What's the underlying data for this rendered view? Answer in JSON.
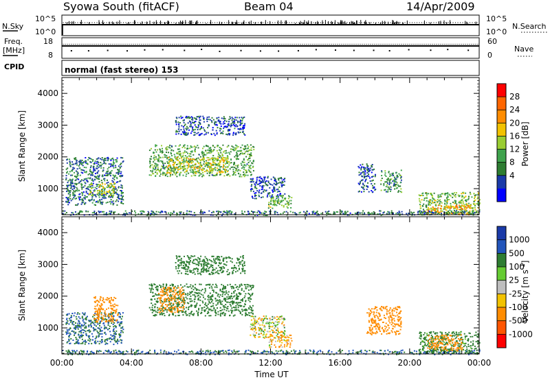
{
  "header": {
    "station": "Syowa South (fitACF)",
    "beam": "Beam 04",
    "date": "14/Apr/2009"
  },
  "panels": {
    "nsky": {
      "left_label": "N.Sky",
      "right_label": "N.Search",
      "left_ticks": [
        "10^5",
        "10^0"
      ],
      "right_ticks": [
        "10^5",
        "10^0"
      ]
    },
    "freq": {
      "left_label_1": "Freq.",
      "left_label_2": "[MHz]",
      "right_label": "Nave",
      "left_ticks": [
        "18",
        "8"
      ],
      "right_ticks": [
        "60",
        "0"
      ]
    },
    "cpid": {
      "left_label": "CPID",
      "text": "normal (fast stereo) 153"
    }
  },
  "colors": {
    "power_scale": [
      "#0000ff",
      "#1a3aa8",
      "#2e7d32",
      "#3fa34d",
      "#9acd32",
      "#f2c200",
      "#ff8c00",
      "#ff6600",
      "#ff0000"
    ],
    "velocity_scale": [
      "#1a3aa8",
      "#2255bb",
      "#2e7d32",
      "#66cc33",
      "#bebebe",
      "#f2c200",
      "#ff8c00",
      "#ff5500",
      "#ff0000"
    ]
  },
  "chart_data": [
    {
      "type": "heatmap",
      "title": "",
      "xlabel": "",
      "ylabel": "Slant Range [km]",
      "xlim": [
        0,
        24
      ],
      "ylim": [
        180,
        4500
      ],
      "y_ticks": [
        "1000",
        "2000",
        "3000",
        "4000"
      ],
      "colorbar": {
        "label": "Power [dB]",
        "range": [
          0,
          32
        ],
        "ticks": [
          "4",
          "8",
          "12",
          "16",
          "20",
          "24",
          "28"
        ]
      },
      "echo_regions": [
        {
          "t0": 0.2,
          "t1": 3.5,
          "r0": 500,
          "r1": 2000,
          "value": 8
        },
        {
          "t0": 1.5,
          "t1": 3.0,
          "r0": 800,
          "r1": 1200,
          "value": 16
        },
        {
          "t0": 5.0,
          "t1": 11.0,
          "r0": 1400,
          "r1": 2400,
          "value": 12
        },
        {
          "t0": 6.0,
          "t1": 9.5,
          "r0": 1500,
          "r1": 2000,
          "value": 18
        },
        {
          "t0": 6.5,
          "t1": 10.5,
          "r0": 2700,
          "r1": 3300,
          "value": 6
        },
        {
          "t0": 10.8,
          "t1": 12.8,
          "r0": 700,
          "r1": 1400,
          "value": 6
        },
        {
          "t0": 11.8,
          "t1": 13.2,
          "r0": 400,
          "r1": 800,
          "value": 14
        },
        {
          "t0": 17.0,
          "t1": 18.0,
          "r0": 900,
          "r1": 1800,
          "value": 6
        },
        {
          "t0": 18.3,
          "t1": 19.5,
          "r0": 900,
          "r1": 1600,
          "value": 10
        },
        {
          "t0": 20.5,
          "t1": 24.0,
          "r0": 200,
          "r1": 900,
          "value": 14
        },
        {
          "t0": 21.0,
          "t1": 23.5,
          "r0": 200,
          "r1": 500,
          "value": 22
        },
        {
          "t0": 0.0,
          "t1": 24.0,
          "r0": 180,
          "r1": 320,
          "value": 8
        }
      ]
    },
    {
      "type": "heatmap",
      "title": "",
      "xlabel": "Time UT",
      "ylabel": "Slant Range [km]",
      "xlim": [
        0,
        24
      ],
      "ylim": [
        180,
        4500
      ],
      "x_ticks": [
        "00:00",
        "04:00",
        "08:00",
        "12:00",
        "16:00",
        "20:00",
        "00:00"
      ],
      "y_ticks": [
        "1000",
        "2000",
        "3000",
        "4000"
      ],
      "colorbar": {
        "label": "Velocity [m s",
        "label_sup": "-1",
        "label_end": "]",
        "levels": [
          "1000",
          "500",
          "100",
          "25",
          "-25",
          "-100",
          "-500",
          "-1000"
        ]
      },
      "echo_regions": [
        {
          "t0": 0.2,
          "t1": 3.5,
          "r0": 500,
          "r1": 1500,
          "value": 500
        },
        {
          "t0": 1.8,
          "t1": 3.2,
          "r0": 1200,
          "r1": 2000,
          "value": -300
        },
        {
          "t0": 5.0,
          "t1": 11.0,
          "r0": 1400,
          "r1": 2400,
          "value": 300
        },
        {
          "t0": 5.5,
          "t1": 7.0,
          "r0": 1500,
          "r1": 2300,
          "value": -300
        },
        {
          "t0": 6.5,
          "t1": 10.5,
          "r0": 2700,
          "r1": 3300,
          "value": 300
        },
        {
          "t0": 10.8,
          "t1": 12.8,
          "r0": 700,
          "r1": 1400,
          "value": 0
        },
        {
          "t0": 11.8,
          "t1": 13.2,
          "r0": 400,
          "r1": 800,
          "value": -100
        },
        {
          "t0": 17.5,
          "t1": 19.5,
          "r0": 800,
          "r1": 1700,
          "value": -300
        },
        {
          "t0": 20.5,
          "t1": 24.0,
          "r0": 200,
          "r1": 900,
          "value": 200
        },
        {
          "t0": 21.0,
          "t1": 23.0,
          "r0": 300,
          "r1": 800,
          "value": -300
        },
        {
          "t0": 0.0,
          "t1": 24.0,
          "r0": 180,
          "r1": 320,
          "value": 500
        }
      ]
    }
  ]
}
